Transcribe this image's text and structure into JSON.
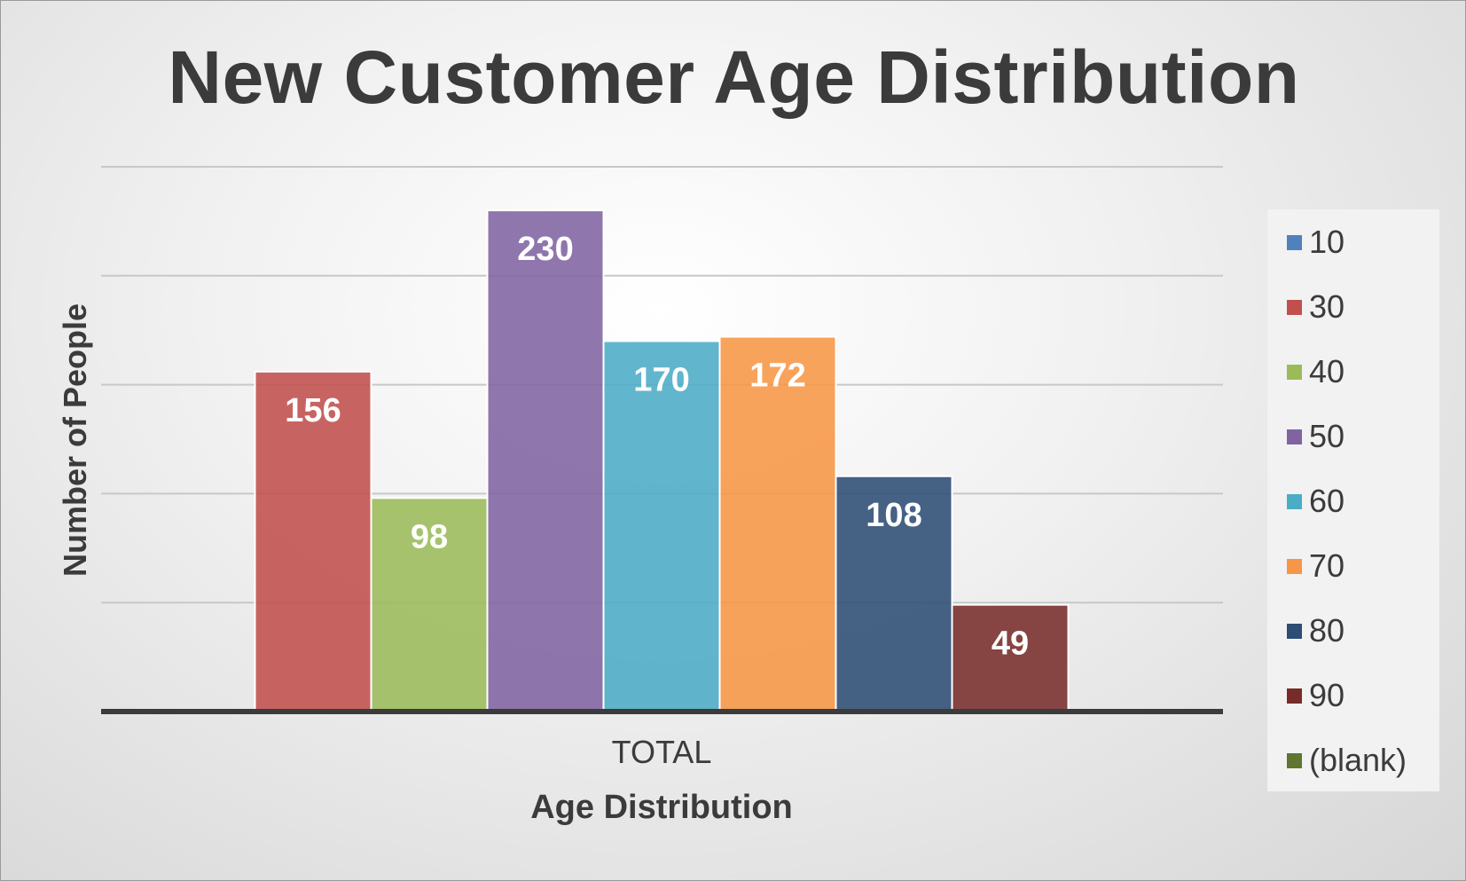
{
  "chart_data": {
    "type": "bar",
    "title": "New Customer Age Distribution",
    "xlabel": "Age Distribution",
    "ylabel": "Number of People",
    "categories": [
      "TOTAL"
    ],
    "ylim": [
      0,
      250
    ],
    "gridlines": [
      50,
      100,
      150,
      200,
      250
    ],
    "grid": true,
    "legend_position": "right",
    "series": [
      {
        "name": "10",
        "values": [
          0
        ],
        "color": "#4f81bd"
      },
      {
        "name": "30",
        "values": [
          156
        ],
        "color": "#c0504d"
      },
      {
        "name": "40",
        "values": [
          98
        ],
        "color": "#9bbb59"
      },
      {
        "name": "50",
        "values": [
          230
        ],
        "color": "#8064a2"
      },
      {
        "name": "60",
        "values": [
          170
        ],
        "color": "#4bacc6"
      },
      {
        "name": "70",
        "values": [
          172
        ],
        "color": "#f79646"
      },
      {
        "name": "80",
        "values": [
          108
        ],
        "color": "#2c4d75"
      },
      {
        "name": "90",
        "values": [
          49
        ],
        "color": "#772c2a"
      },
      {
        "name": "(blank)",
        "values": [
          0
        ],
        "color": "#5f7530"
      }
    ]
  }
}
